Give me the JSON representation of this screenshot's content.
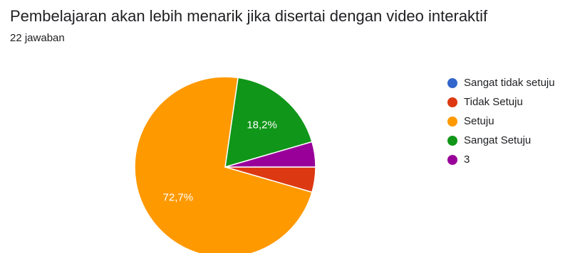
{
  "header": {
    "title": "Pembelajaran akan lebih menarik jika disertai dengan video interaktif",
    "response_count": "22 jawaban"
  },
  "chart_data": {
    "type": "pie",
    "title": "Pembelajaran akan lebih menarik jika disertai dengan video interaktif",
    "legend_position": "right",
    "slices": [
      {
        "label": "Sangat tidak setuju",
        "value": 0,
        "color": "#3366cc",
        "data_label": ""
      },
      {
        "label": "Tidak Setuju",
        "value": 4.5,
        "color": "#dc3912",
        "data_label": ""
      },
      {
        "label": "Setuju",
        "value": 72.7,
        "color": "#ff9900",
        "data_label": "72,7%"
      },
      {
        "label": "Sangat Setuju",
        "value": 18.2,
        "color": "#109618",
        "data_label": "18,2%"
      },
      {
        "label": "3",
        "value": 4.5,
        "color": "#990099",
        "data_label": ""
      }
    ]
  }
}
